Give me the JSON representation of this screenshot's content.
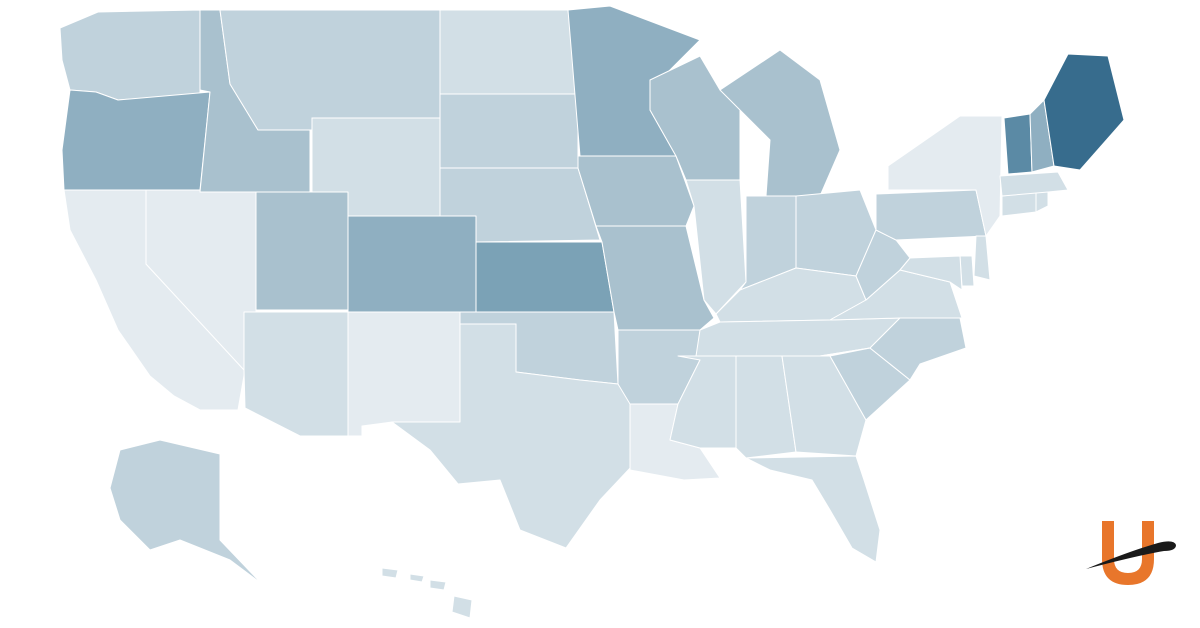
{
  "map": {
    "type": "choropleth",
    "region": "United States",
    "scale_colors": {
      "lightest": "#e4ebf0",
      "light": "#d2dfe6",
      "medium_light": "#c0d2dc",
      "medium": "#a9c1ce",
      "medium_dark": "#8fafc1",
      "dark": "#7ba2b6",
      "darker": "#5b8aa5",
      "darkest": "#376c8d"
    },
    "states": [
      {
        "code": "WA",
        "shade": "medium_light"
      },
      {
        "code": "OR",
        "shade": "medium_dark"
      },
      {
        "code": "CA",
        "shade": "lightest"
      },
      {
        "code": "NV",
        "shade": "lightest"
      },
      {
        "code": "ID",
        "shade": "medium"
      },
      {
        "code": "MT",
        "shade": "medium_light"
      },
      {
        "code": "WY",
        "shade": "light"
      },
      {
        "code": "UT",
        "shade": "medium"
      },
      {
        "code": "AZ",
        "shade": "light"
      },
      {
        "code": "CO",
        "shade": "medium_dark"
      },
      {
        "code": "NM",
        "shade": "lightest"
      },
      {
        "code": "ND",
        "shade": "light"
      },
      {
        "code": "SD",
        "shade": "medium_light"
      },
      {
        "code": "NE",
        "shade": "medium_light"
      },
      {
        "code": "KS",
        "shade": "dark"
      },
      {
        "code": "OK",
        "shade": "medium_light"
      },
      {
        "code": "TX",
        "shade": "light"
      },
      {
        "code": "MN",
        "shade": "medium_dark"
      },
      {
        "code": "IA",
        "shade": "medium"
      },
      {
        "code": "MO",
        "shade": "medium"
      },
      {
        "code": "AR",
        "shade": "medium_light"
      },
      {
        "code": "LA",
        "shade": "lightest"
      },
      {
        "code": "WI",
        "shade": "medium"
      },
      {
        "code": "IL",
        "shade": "light"
      },
      {
        "code": "MI",
        "shade": "medium"
      },
      {
        "code": "IN",
        "shade": "medium_light"
      },
      {
        "code": "OH",
        "shade": "medium_light"
      },
      {
        "code": "KY",
        "shade": "light"
      },
      {
        "code": "TN",
        "shade": "light"
      },
      {
        "code": "MS",
        "shade": "light"
      },
      {
        "code": "AL",
        "shade": "light"
      },
      {
        "code": "GA",
        "shade": "light"
      },
      {
        "code": "FL",
        "shade": "light"
      },
      {
        "code": "SC",
        "shade": "medium_light"
      },
      {
        "code": "NC",
        "shade": "medium_light"
      },
      {
        "code": "VA",
        "shade": "light"
      },
      {
        "code": "WV",
        "shade": "medium_light"
      },
      {
        "code": "PA",
        "shade": "medium_light"
      },
      {
        "code": "NY",
        "shade": "lightest"
      },
      {
        "code": "NJ",
        "shade": "light"
      },
      {
        "code": "DE",
        "shade": "light"
      },
      {
        "code": "MD",
        "shade": "light"
      },
      {
        "code": "CT",
        "shade": "light"
      },
      {
        "code": "RI",
        "shade": "light"
      },
      {
        "code": "MA",
        "shade": "light"
      },
      {
        "code": "VT",
        "shade": "darker"
      },
      {
        "code": "NH",
        "shade": "medium_dark"
      },
      {
        "code": "ME",
        "shade": "darkest"
      },
      {
        "code": "AK",
        "shade": "medium_light"
      },
      {
        "code": "HI",
        "shade": "light"
      }
    ]
  },
  "logo": {
    "name": "brand-logo",
    "u_color": "#e8762b",
    "swoosh_color": "#1a1a1a"
  }
}
